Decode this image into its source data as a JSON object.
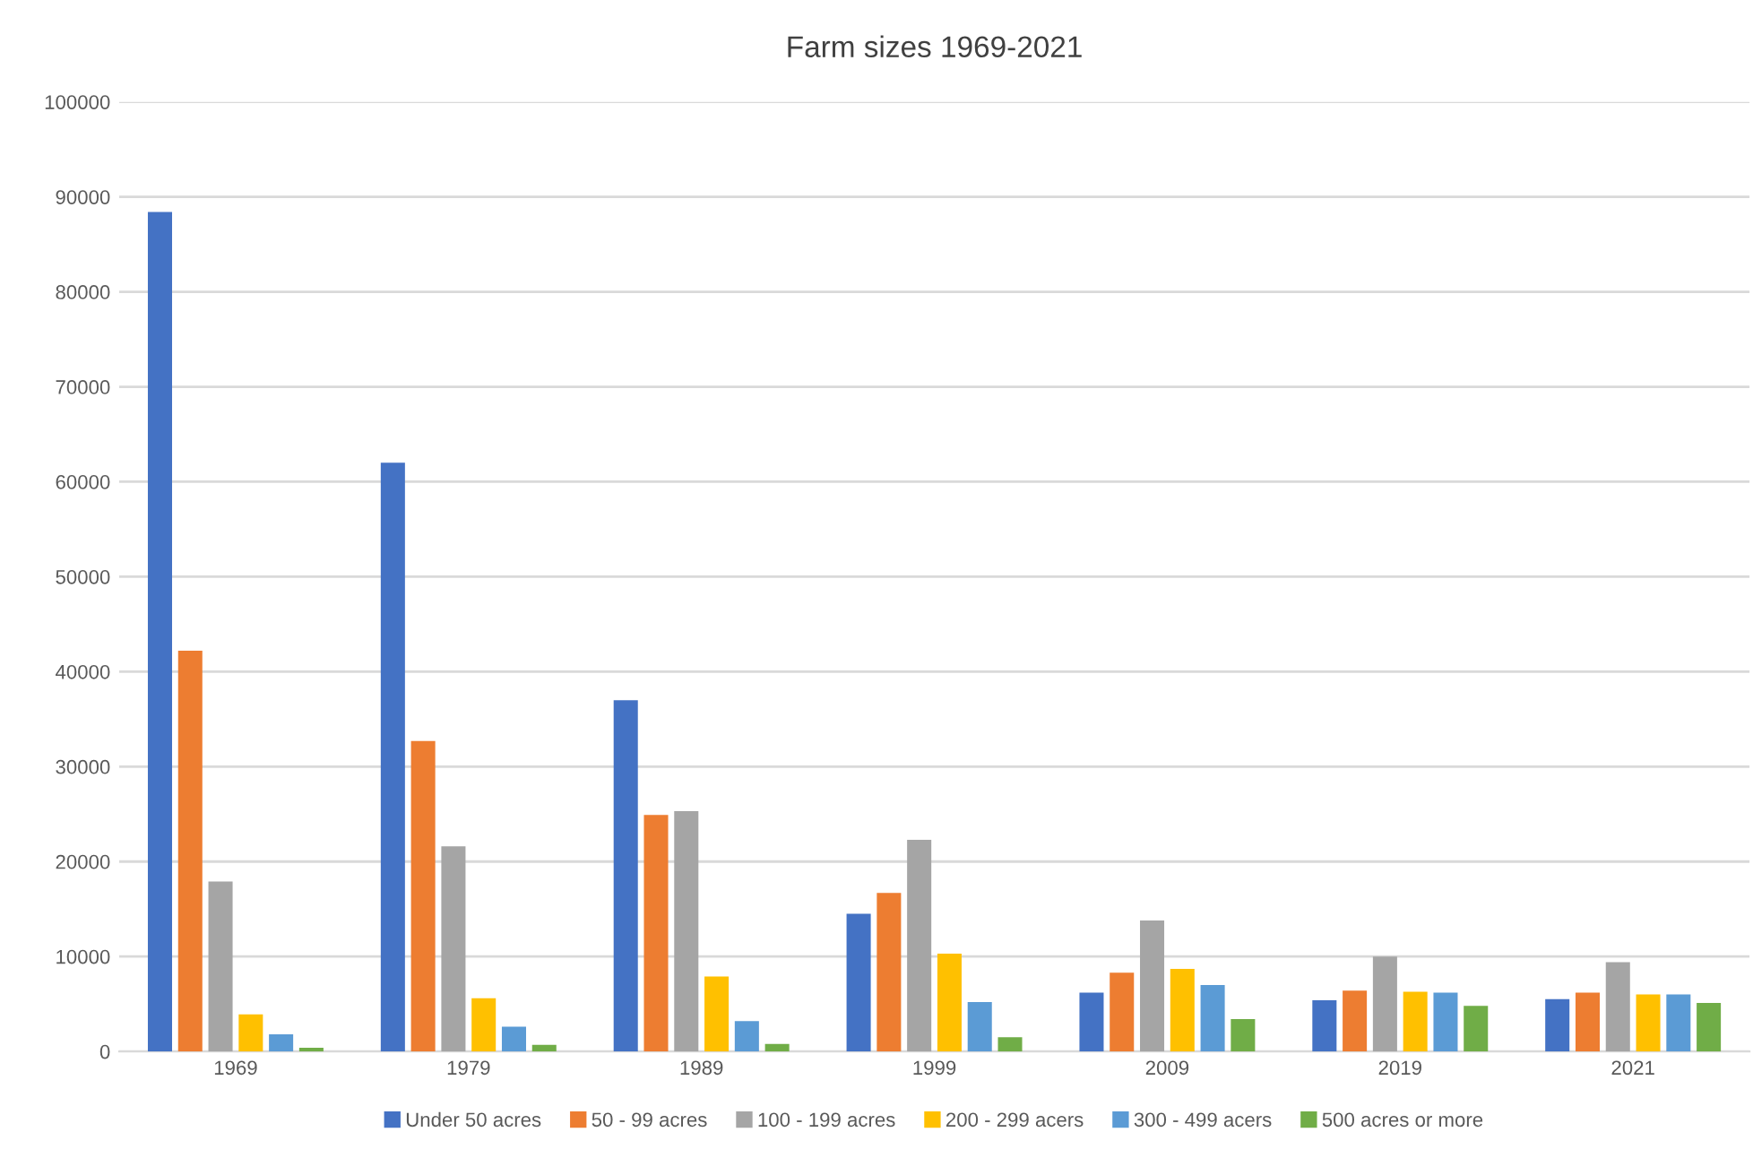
{
  "chart_data": {
    "type": "bar",
    "title": "Farm sizes 1969-2021",
    "categories": [
      "1969",
      "1979",
      "1989",
      "1999",
      "2009",
      "2019",
      "2021"
    ],
    "series": [
      {
        "name": "Under 50 acres",
        "color": "#4472c4",
        "values": [
          88400,
          62000,
          37000,
          14500,
          6200,
          5400,
          5500
        ]
      },
      {
        "name": "50 - 99 acres",
        "color": "#ed7d31",
        "values": [
          42200,
          32700,
          24900,
          16700,
          8300,
          6400,
          6200
        ]
      },
      {
        "name": "100 - 199 acres",
        "color": "#a5a5a5",
        "values": [
          17900,
          21600,
          25300,
          22300,
          13800,
          10000,
          9400
        ]
      },
      {
        "name": "200 - 299 acers",
        "color": "#ffc000",
        "values": [
          3900,
          5600,
          7900,
          10300,
          8700,
          6300,
          6000
        ]
      },
      {
        "name": "300 - 499 acers",
        "color": "#5b9bd5",
        "values": [
          1800,
          2600,
          3200,
          5200,
          7000,
          6200,
          6000
        ]
      },
      {
        "name": "500 acres or more",
        "color": "#70ad47",
        "values": [
          400,
          700,
          800,
          1500,
          3400,
          4800,
          5100
        ]
      }
    ],
    "ylim": [
      0,
      100000
    ],
    "yticks": [
      0,
      10000,
      20000,
      30000,
      40000,
      50000,
      60000,
      70000,
      80000,
      90000,
      100000
    ],
    "grid": "y",
    "legend": "bottom"
  }
}
